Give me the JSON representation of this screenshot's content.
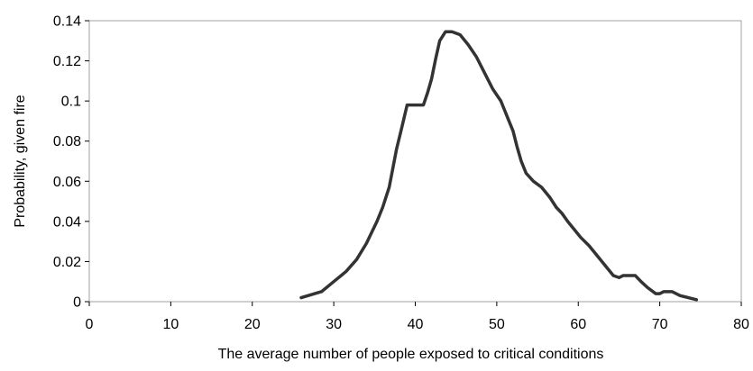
{
  "chart_data": {
    "type": "line",
    "title": "",
    "xlabel": "The average number of people exposed to critical conditions",
    "ylabel": "Probability, given fire",
    "xlim": [
      0,
      80
    ],
    "ylim": [
      0,
      0.14
    ],
    "x_ticks": [
      0,
      10,
      20,
      30,
      40,
      50,
      60,
      70,
      80
    ],
    "x_tick_labels": [
      "0",
      "10",
      "20",
      "30",
      "40",
      "50",
      "60",
      "70",
      "80"
    ],
    "y_ticks": [
      0,
      0.02,
      0.04,
      0.06,
      0.08,
      0.1,
      0.12,
      0.14
    ],
    "y_tick_labels": [
      "0",
      "0.02",
      "0.04",
      "0.06",
      "0.08",
      "0.1",
      "0.12",
      "0.14"
    ],
    "grid": false,
    "legend": "none",
    "series": [
      {
        "color": "#333333",
        "x": [
          26,
          28.5,
          30,
          31.5,
          32.8,
          34,
          35.3,
          36,
          36.8,
          37.7,
          38.3,
          39,
          40,
          41,
          41.5,
          42,
          42.5,
          43,
          43.7,
          44.5,
          45.5,
          46.5,
          47.5,
          48.5,
          49.5,
          50.5,
          51.5,
          52,
          52.5,
          53,
          53.6,
          54.5,
          55.5,
          56.5,
          57.3,
          58,
          58.7,
          59.5,
          60.3,
          61.3,
          62.3,
          63.3,
          64.3,
          65,
          65.5,
          66,
          67,
          67.7,
          68.5,
          69.5,
          70,
          70.5,
          71.5,
          72.5,
          73.5,
          74.5
        ],
        "y": [
          0.002,
          0.005,
          0.01,
          0.015,
          0.021,
          0.029,
          0.04,
          0.047,
          0.057,
          0.076,
          0.086,
          0.098,
          0.098,
          0.098,
          0.104,
          0.111,
          0.121,
          0.13,
          0.1345,
          0.1345,
          0.133,
          0.128,
          0.122,
          0.114,
          0.106,
          0.1,
          0.09,
          0.085,
          0.077,
          0.07,
          0.064,
          0.06,
          0.057,
          0.052,
          0.047,
          0.044,
          0.04,
          0.036,
          0.032,
          0.028,
          0.023,
          0.018,
          0.013,
          0.012,
          0.013,
          0.013,
          0.013,
          0.01,
          0.007,
          0.004,
          0.004,
          0.005,
          0.005,
          0.003,
          0.002,
          0.001
        ]
      }
    ]
  }
}
